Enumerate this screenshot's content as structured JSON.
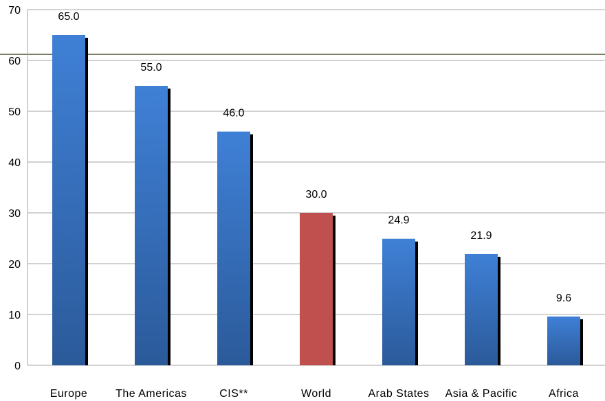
{
  "chart_data": {
    "type": "bar",
    "title": "",
    "xlabel": "",
    "ylabel": "",
    "categories": [
      "Europe",
      "The Americas",
      "CIS**",
      "World",
      "Arab States",
      "Asia & Pacific",
      "Africa"
    ],
    "values": [
      65.0,
      55.0,
      46.0,
      30.0,
      24.9,
      21.9,
      9.6
    ],
    "value_labels": [
      "65.0",
      "55.0",
      "46.0",
      "30.0",
      "24.9",
      "21.9",
      "9.6"
    ],
    "ylim": [
      0,
      70
    ],
    "yticks": [
      0,
      10,
      20,
      30,
      40,
      50,
      60,
      70
    ],
    "grid": true,
    "legend": "none",
    "colors": {
      "default_bar": "#3b78c8",
      "default_bar_dark": "#2a5593",
      "highlight_bar": "#c0504d",
      "highlight_category": "World",
      "shadow": "#000000",
      "gridline": "#a6a6a6",
      "reference_line": "#4a4a2a"
    },
    "reference_line_value": 61.2
  }
}
